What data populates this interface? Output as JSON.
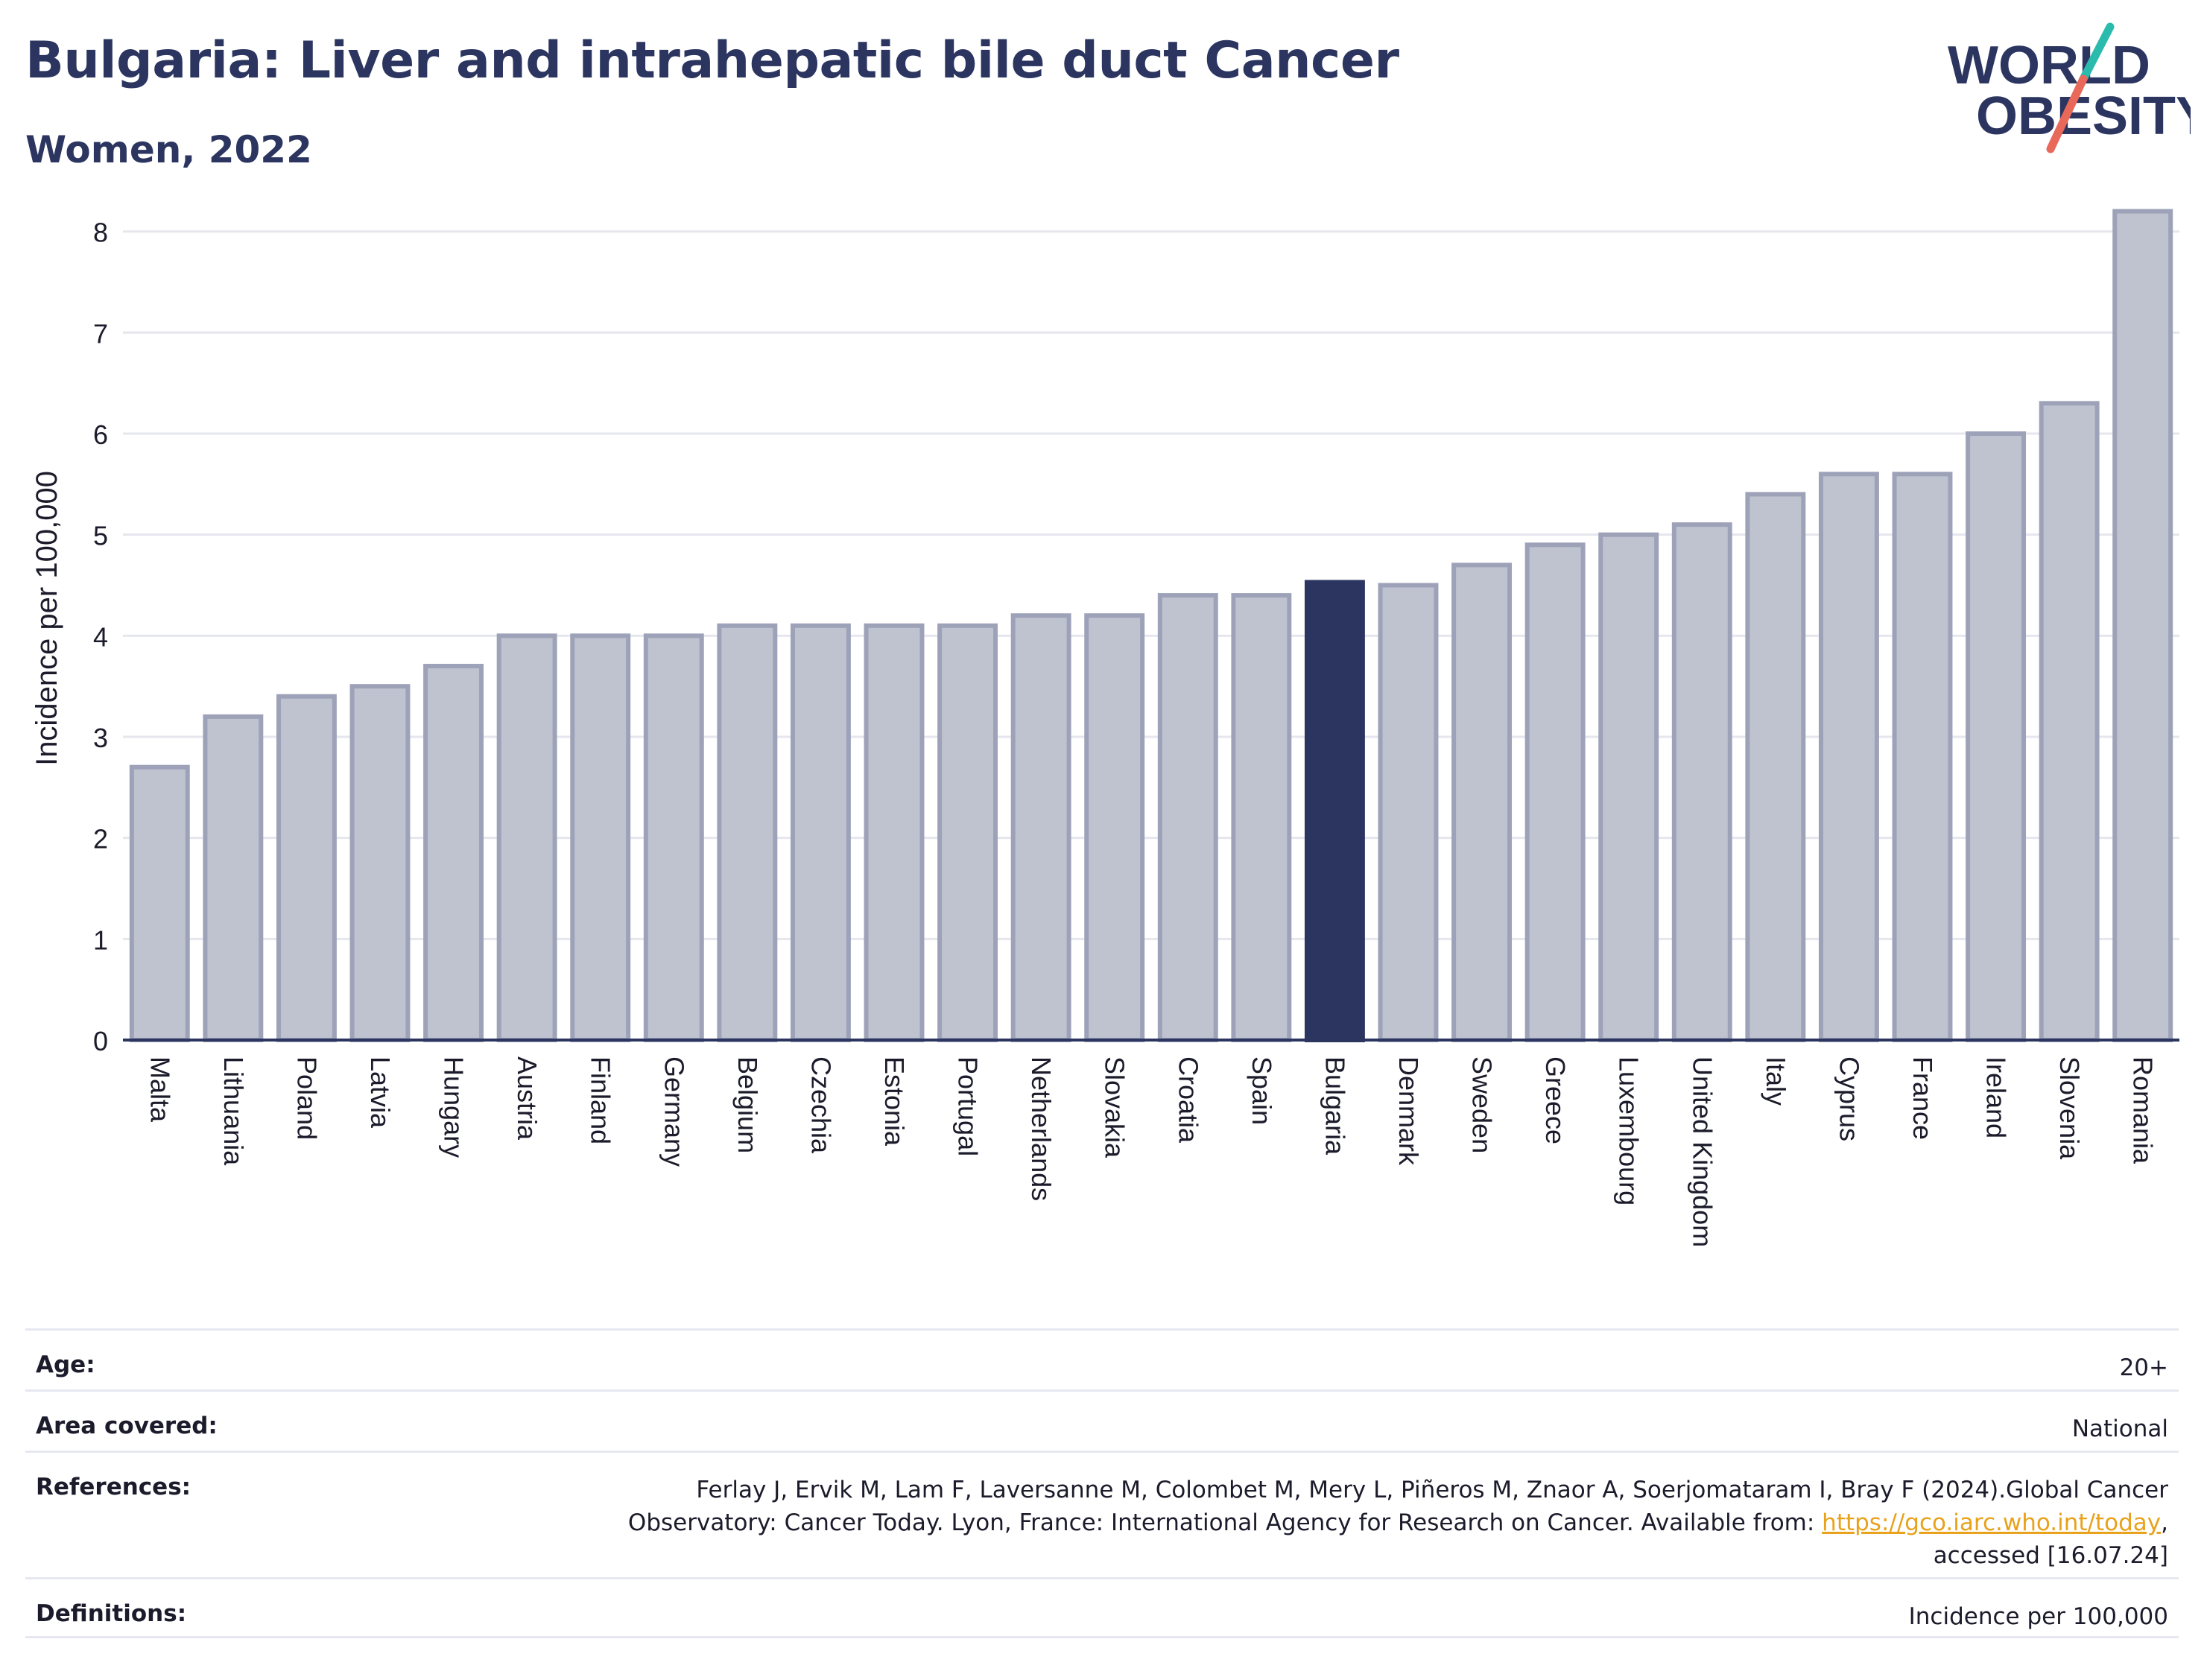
{
  "header": {
    "title": "Bulgaria: Liver and intrahepatic bile duct Cancer",
    "subtitle": "Women, 2022"
  },
  "logo": {
    "line1": "WORLD",
    "line2": "OBESITY",
    "colors": {
      "text": "#2b3560",
      "slash_teal": "#2bbbad",
      "slash_coral": "#e8685a"
    }
  },
  "colors": {
    "bar": "#bfc2cf",
    "bar_border": "#9da2b8",
    "highlight": "#2b3560",
    "grid": "#e6e7ee",
    "axis": "#2b3560"
  },
  "chart_data": {
    "type": "bar",
    "title": "Bulgaria: Liver and intrahepatic bile duct Cancer",
    "subtitle": "Women, 2022",
    "xlabel": "",
    "ylabel": "Incidence per 100,000",
    "ylim": [
      0,
      8.3
    ],
    "yticks": [
      0,
      1,
      2,
      3,
      4,
      5,
      6,
      7,
      8
    ],
    "grid": true,
    "highlight": "Bulgaria",
    "categories": [
      "Malta",
      "Lithuania",
      "Poland",
      "Latvia",
      "Hungary",
      "Austria",
      "Finland",
      "Germany",
      "Belgium",
      "Czechia",
      "Estonia",
      "Portugal",
      "Netherlands",
      "Slovakia",
      "Croatia",
      "Spain",
      "Bulgaria",
      "Denmark",
      "Sweden",
      "Greece",
      "Luxembourg",
      "United Kingdom",
      "Italy",
      "Cyprus",
      "France",
      "Ireland",
      "Slovenia",
      "Romania"
    ],
    "values": [
      2.7,
      3.2,
      3.4,
      3.5,
      3.7,
      4.0,
      4.0,
      4.0,
      4.1,
      4.1,
      4.1,
      4.1,
      4.2,
      4.2,
      4.4,
      4.4,
      4.53,
      4.5,
      4.7,
      4.9,
      5.0,
      5.1,
      5.4,
      5.6,
      5.6,
      6.0,
      6.3,
      8.2
    ]
  },
  "info": {
    "age_label": "Age:",
    "age_value": "20+",
    "area_label": "Area covered:",
    "area_value": "National",
    "references_label": "References:",
    "references_line1": "Ferlay J, Ervik M, Lam F, Laversanne M, Colombet M, Mery L, Piñeros M, Znaor A, Soerjomataram I, Bray F (2024).Global Cancer",
    "references_line2": "Observatory: Cancer Today. Lyon, France: International Agency for Research on Cancer. Available from: ",
    "references_link": "https://gco.iarc.who.int/today",
    "references_line2_end": ",",
    "references_line3": "accessed [16.07.24]",
    "definitions_label": "Definitions:",
    "definitions_value": "Incidence per 100,000"
  }
}
